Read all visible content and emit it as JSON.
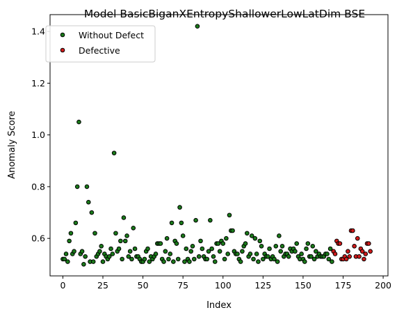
{
  "chart_data": {
    "type": "scatter",
    "title": "Model BasicBiganXEntropyShallowerLowLatDim BSE",
    "xlabel": "Index",
    "ylabel": "Anomaly Score",
    "xlim": [
      -8,
      203
    ],
    "ylim": [
      0.455,
      1.465
    ],
    "xticks": [
      0,
      25,
      50,
      75,
      100,
      125,
      150,
      175,
      200
    ],
    "yticks": [
      0.6,
      0.8,
      1.0,
      1.2,
      1.4
    ],
    "xtick_labels": [
      "0",
      "25",
      "50",
      "75",
      "100",
      "125",
      "150",
      "175",
      "200"
    ],
    "ytick_labels": [
      "0.6",
      "0.8",
      "1.0",
      "1.2",
      "1.4"
    ],
    "grid": false,
    "legend_position": "top-left",
    "series": [
      {
        "name": "Without Defect",
        "color": "#1a7a1a",
        "points": [
          [
            0,
            0.52
          ],
          [
            1,
            0.52
          ],
          [
            2,
            0.54
          ],
          [
            3,
            0.51
          ],
          [
            4,
            0.59
          ],
          [
            5,
            0.62
          ],
          [
            6,
            0.54
          ],
          [
            7,
            0.55
          ],
          [
            8,
            0.66
          ],
          [
            9,
            0.8
          ],
          [
            10,
            1.05
          ],
          [
            11,
            0.54
          ],
          [
            12,
            0.55
          ],
          [
            13,
            0.5
          ],
          [
            14,
            0.53
          ],
          [
            15,
            0.8
          ],
          [
            16,
            0.74
          ],
          [
            17,
            0.51
          ],
          [
            18,
            0.7
          ],
          [
            19,
            0.51
          ],
          [
            20,
            0.62
          ],
          [
            21,
            0.53
          ],
          [
            22,
            0.54
          ],
          [
            23,
            0.55
          ],
          [
            24,
            0.57
          ],
          [
            25,
            0.51
          ],
          [
            26,
            0.54
          ],
          [
            27,
            0.53
          ],
          [
            28,
            0.52
          ],
          [
            29,
            0.53
          ],
          [
            30,
            0.56
          ],
          [
            31,
            0.54
          ],
          [
            32,
            0.93
          ],
          [
            33,
            0.62
          ],
          [
            34,
            0.55
          ],
          [
            35,
            0.56
          ],
          [
            36,
            0.59
          ],
          [
            37,
            0.52
          ],
          [
            38,
            0.68
          ],
          [
            39,
            0.59
          ],
          [
            40,
            0.61
          ],
          [
            41,
            0.53
          ],
          [
            42,
            0.55
          ],
          [
            43,
            0.52
          ],
          [
            44,
            0.64
          ],
          [
            45,
            0.56
          ],
          [
            46,
            0.53
          ],
          [
            47,
            0.53
          ],
          [
            48,
            0.52
          ],
          [
            49,
            0.51
          ],
          [
            50,
            0.51
          ],
          [
            51,
            0.52
          ],
          [
            52,
            0.55
          ],
          [
            53,
            0.56
          ],
          [
            54,
            0.51
          ],
          [
            55,
            0.53
          ],
          [
            56,
            0.52
          ],
          [
            57,
            0.53
          ],
          [
            58,
            0.54
          ],
          [
            59,
            0.58
          ],
          [
            60,
            0.58
          ],
          [
            61,
            0.58
          ],
          [
            62,
            0.52
          ],
          [
            63,
            0.51
          ],
          [
            64,
            0.55
          ],
          [
            65,
            0.6
          ],
          [
            66,
            0.52
          ],
          [
            67,
            0.54
          ],
          [
            68,
            0.66
          ],
          [
            69,
            0.51
          ],
          [
            70,
            0.59
          ],
          [
            71,
            0.58
          ],
          [
            72,
            0.52
          ],
          [
            73,
            0.72
          ],
          [
            74,
            0.66
          ],
          [
            75,
            0.61
          ],
          [
            76,
            0.51
          ],
          [
            77,
            0.56
          ],
          [
            78,
            0.52
          ],
          [
            79,
            0.51
          ],
          [
            80,
            0.55
          ],
          [
            81,
            0.57
          ],
          [
            82,
            0.52
          ],
          [
            83,
            0.67
          ],
          [
            84,
            1.42
          ],
          [
            85,
            0.53
          ],
          [
            86,
            0.59
          ],
          [
            87,
            0.56
          ],
          [
            88,
            0.53
          ],
          [
            89,
            0.52
          ],
          [
            90,
            0.52
          ],
          [
            91,
            0.55
          ],
          [
            92,
            0.67
          ],
          [
            93,
            0.56
          ],
          [
            94,
            0.53
          ],
          [
            95,
            0.51
          ],
          [
            96,
            0.58
          ],
          [
            97,
            0.58
          ],
          [
            98,
            0.55
          ],
          [
            99,
            0.59
          ],
          [
            100,
            0.58
          ],
          [
            101,
            0.52
          ],
          [
            102,
            0.6
          ],
          [
            103,
            0.54
          ],
          [
            104,
            0.69
          ],
          [
            105,
            0.63
          ],
          [
            106,
            0.63
          ],
          [
            107,
            0.55
          ],
          [
            108,
            0.54
          ],
          [
            109,
            0.54
          ],
          [
            110,
            0.52
          ],
          [
            111,
            0.51
          ],
          [
            112,
            0.55
          ],
          [
            113,
            0.57
          ],
          [
            114,
            0.58
          ],
          [
            115,
            0.62
          ],
          [
            116,
            0.53
          ],
          [
            117,
            0.54
          ],
          [
            118,
            0.61
          ],
          [
            119,
            0.52
          ],
          [
            120,
            0.6
          ],
          [
            121,
            0.54
          ],
          [
            122,
            0.51
          ],
          [
            123,
            0.59
          ],
          [
            124,
            0.57
          ],
          [
            125,
            0.52
          ],
          [
            126,
            0.54
          ],
          [
            127,
            0.53
          ],
          [
            128,
            0.53
          ],
          [
            129,
            0.56
          ],
          [
            130,
            0.52
          ],
          [
            131,
            0.53
          ],
          [
            132,
            0.52
          ],
          [
            133,
            0.57
          ],
          [
            134,
            0.51
          ],
          [
            135,
            0.61
          ],
          [
            136,
            0.55
          ],
          [
            137,
            0.57
          ],
          [
            138,
            0.53
          ],
          [
            139,
            0.54
          ],
          [
            140,
            0.54
          ],
          [
            141,
            0.53
          ],
          [
            142,
            0.56
          ],
          [
            143,
            0.55
          ],
          [
            144,
            0.56
          ],
          [
            145,
            0.55
          ],
          [
            146,
            0.58
          ],
          [
            147,
            0.53
          ],
          [
            148,
            0.52
          ],
          [
            149,
            0.54
          ],
          [
            150,
            0.52
          ],
          [
            151,
            0.51
          ],
          [
            152,
            0.56
          ],
          [
            153,
            0.58
          ],
          [
            154,
            0.53
          ],
          [
            155,
            0.53
          ],
          [
            156,
            0.57
          ],
          [
            157,
            0.52
          ],
          [
            158,
            0.55
          ],
          [
            159,
            0.53
          ],
          [
            160,
            0.54
          ],
          [
            161,
            0.53
          ],
          [
            162,
            0.53
          ],
          [
            163,
            0.53
          ],
          [
            164,
            0.54
          ],
          [
            165,
            0.54
          ],
          [
            166,
            0.52
          ],
          [
            167,
            0.56
          ],
          [
            168,
            0.51
          ]
        ]
      },
      {
        "name": "Defective",
        "color": "#d11a1a",
        "points": [
          [
            169,
            0.55
          ],
          [
            170,
            0.54
          ],
          [
            171,
            0.59
          ],
          [
            172,
            0.58
          ],
          [
            173,
            0.58
          ],
          [
            174,
            0.52
          ],
          [
            175,
            0.52
          ],
          [
            176,
            0.53
          ],
          [
            177,
            0.52
          ],
          [
            178,
            0.55
          ],
          [
            179,
            0.53
          ],
          [
            180,
            0.63
          ],
          [
            181,
            0.63
          ],
          [
            182,
            0.57
          ],
          [
            183,
            0.53
          ],
          [
            184,
            0.6
          ],
          [
            185,
            0.53
          ],
          [
            186,
            0.56
          ],
          [
            187,
            0.55
          ],
          [
            188,
            0.52
          ],
          [
            189,
            0.54
          ],
          [
            190,
            0.58
          ],
          [
            191,
            0.58
          ],
          [
            192,
            0.55
          ]
        ]
      }
    ]
  }
}
